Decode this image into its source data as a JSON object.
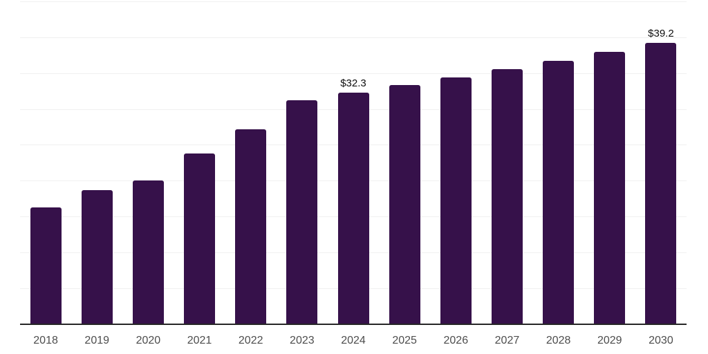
{
  "chart_data": {
    "type": "bar",
    "title": "",
    "xlabel": "",
    "ylabel": "",
    "categories": [
      "2018",
      "2019",
      "2020",
      "2021",
      "2022",
      "2023",
      "2024",
      "2025",
      "2026",
      "2027",
      "2028",
      "2029",
      "2030"
    ],
    "values": [
      16.3,
      18.7,
      20.0,
      23.8,
      27.2,
      31.2,
      32.3,
      33.3,
      34.4,
      35.5,
      36.7,
      38.0,
      39.2
    ],
    "data_labels": [
      {
        "category": "2024",
        "text": "$32.3"
      },
      {
        "category": "2030",
        "text": "$39.2"
      }
    ],
    "ylim": [
      0,
      45
    ],
    "gridline_step": 5,
    "grid": "horizontal",
    "legend": "none",
    "colors": {
      "bar": "#36114A",
      "gridline": "#f0f0f0",
      "axis": "#262626",
      "tick_label": "#4d4d4d",
      "data_label": "#0d0d0d",
      "background": "#ffffff"
    }
  }
}
